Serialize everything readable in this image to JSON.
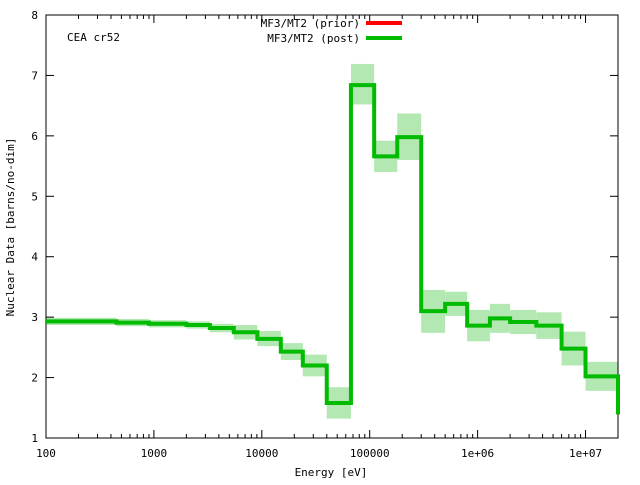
{
  "chart_data": {
    "type": "line",
    "title": "",
    "annotation": "CEA cr52",
    "xlabel": "Energy [eV]",
    "ylabel": "Nuclear Data [barns/no-dim]",
    "xscale": "log",
    "xlim": [
      100,
      20000000
    ],
    "ylim": [
      1,
      8
    ],
    "grid": false,
    "legend_position": "top",
    "x_ticks": [
      {
        "value": 100,
        "label": "100"
      },
      {
        "value": 1000,
        "label": "1000"
      },
      {
        "value": 10000,
        "label": "10000"
      },
      {
        "value": 100000,
        "label": "100000"
      },
      {
        "value": 1000000,
        "label": "1e+06"
      },
      {
        "value": 10000000,
        "label": "1e+07"
      }
    ],
    "y_ticks": [
      {
        "value": 1,
        "label": "1"
      },
      {
        "value": 2,
        "label": "2"
      },
      {
        "value": 3,
        "label": "3"
      },
      {
        "value": 4,
        "label": "4"
      },
      {
        "value": 5,
        "label": "5"
      },
      {
        "value": 6,
        "label": "6"
      },
      {
        "value": 7,
        "label": "7"
      },
      {
        "value": 8,
        "label": "8"
      }
    ],
    "series": [
      {
        "name": "MF3/MT2 (prior)",
        "color": "#ff0000"
      },
      {
        "name": "MF3/MT2 (post)",
        "color": "#00bb00"
      }
    ],
    "uncertainty_band_color": "#b3e8b3",
    "step_edges": [
      100,
      200,
      450,
      900,
      2000,
      3300,
      5500,
      9100,
      15000,
      24000,
      40000,
      67000,
      110000,
      180000,
      300000,
      500000,
      800000,
      1300000,
      2000000,
      3500000,
      6000000,
      10000000,
      20000000
    ],
    "bins": [
      {
        "prior": 2.93,
        "post": 2.93,
        "lo": 2.87,
        "hi": 2.99
      },
      {
        "prior": 2.93,
        "post": 2.93,
        "lo": 2.87,
        "hi": 2.99
      },
      {
        "prior": 2.91,
        "post": 2.91,
        "lo": 2.85,
        "hi": 2.97
      },
      {
        "prior": 2.89,
        "post": 2.89,
        "lo": 2.83,
        "hi": 2.95
      },
      {
        "prior": 2.87,
        "post": 2.87,
        "lo": 2.81,
        "hi": 2.93
      },
      {
        "prior": 2.82,
        "post": 2.82,
        "lo": 2.75,
        "hi": 2.89
      },
      {
        "prior": 2.75,
        "post": 2.75,
        "lo": 2.63,
        "hi": 2.87
      },
      {
        "prior": 2.64,
        "post": 2.64,
        "lo": 2.52,
        "hi": 2.77
      },
      {
        "prior": 2.43,
        "post": 2.43,
        "lo": 2.29,
        "hi": 2.57
      },
      {
        "prior": 2.2,
        "post": 2.2,
        "lo": 2.02,
        "hi": 2.38
      },
      {
        "prior": 1.58,
        "post": 1.58,
        "lo": 1.32,
        "hi": 1.84
      },
      {
        "prior": 6.84,
        "post": 6.84,
        "lo": 6.52,
        "hi": 7.19
      },
      {
        "prior": 5.66,
        "post": 5.66,
        "lo": 5.4,
        "hi": 5.92
      },
      {
        "prior": 5.98,
        "post": 5.98,
        "lo": 5.6,
        "hi": 6.37
      },
      {
        "prior": 3.1,
        "post": 3.1,
        "lo": 2.74,
        "hi": 3.45
      },
      {
        "prior": 3.22,
        "post": 3.22,
        "lo": 3.02,
        "hi": 3.42
      },
      {
        "prior": 2.86,
        "post": 2.86,
        "lo": 2.6,
        "hi": 3.12
      },
      {
        "prior": 2.98,
        "post": 2.98,
        "lo": 2.74,
        "hi": 3.22
      },
      {
        "prior": 2.92,
        "post": 2.92,
        "lo": 2.72,
        "hi": 3.12
      },
      {
        "prior": 2.86,
        "post": 2.86,
        "lo": 2.64,
        "hi": 3.08
      },
      {
        "prior": 2.48,
        "post": 2.48,
        "lo": 2.2,
        "hi": 2.76
      },
      {
        "prior": 2.02,
        "post": 2.02,
        "lo": 1.78,
        "hi": 2.26
      },
      {
        "prior": 1.39,
        "post": 1.39,
        "lo": 1.25,
        "hi": 1.53
      }
    ]
  }
}
